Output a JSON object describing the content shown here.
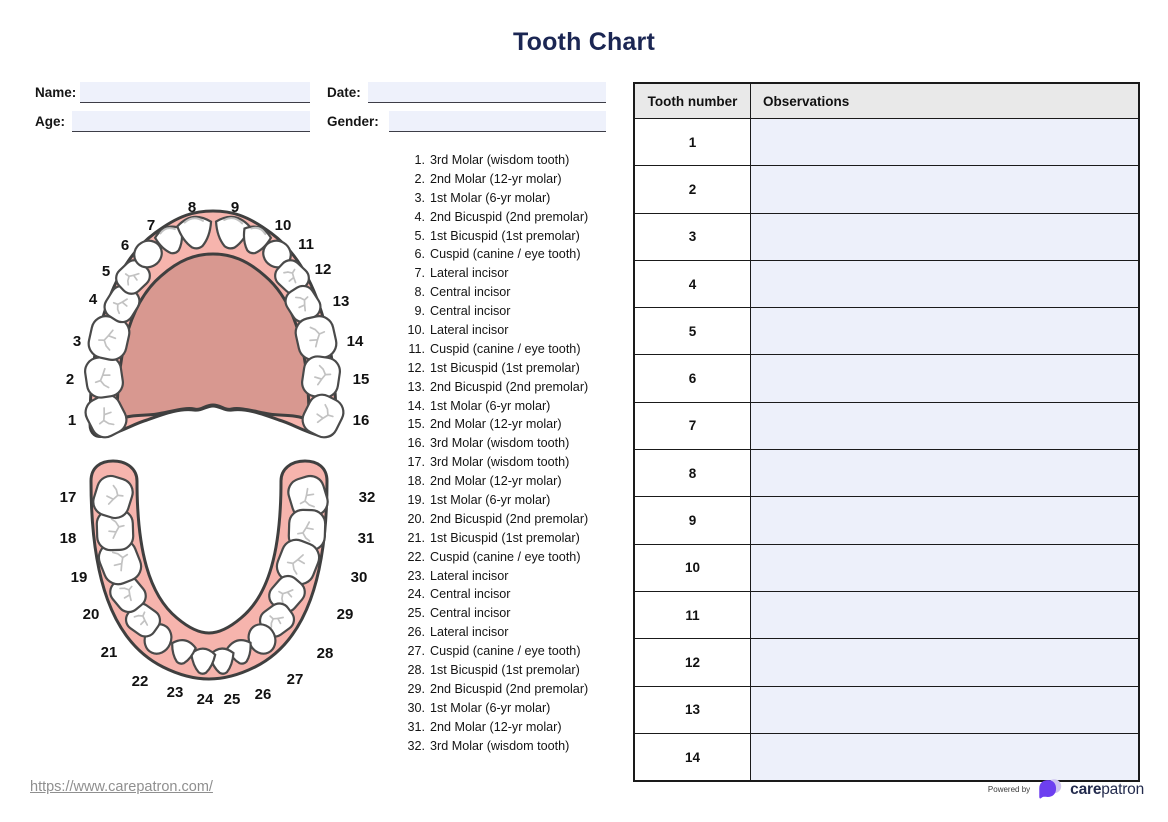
{
  "title": "Tooth Chart",
  "form": {
    "name_label": "Name:",
    "name_value": "",
    "date_label": "Date:",
    "date_value": "",
    "age_label": "Age:",
    "age_value": "",
    "gender_label": "Gender:",
    "gender_value": ""
  },
  "diagram": {
    "upper_teeth_numbers": [
      "1",
      "2",
      "3",
      "4",
      "5",
      "6",
      "7",
      "8",
      "9",
      "10",
      "11",
      "12",
      "13",
      "14",
      "15",
      "16"
    ],
    "lower_teeth_numbers": [
      "17",
      "18",
      "19",
      "20",
      "21",
      "22",
      "23",
      "24",
      "25",
      "26",
      "27",
      "28",
      "29",
      "30",
      "31",
      "32"
    ]
  },
  "tooth_list": [
    {
      "num": "1.",
      "name": "3rd Molar (wisdom tooth)"
    },
    {
      "num": "2.",
      "name": "2nd Molar (12-yr molar)"
    },
    {
      "num": "3.",
      "name": "1st Molar (6-yr molar)"
    },
    {
      "num": "4.",
      "name": "2nd Bicuspid (2nd premolar)"
    },
    {
      "num": "5.",
      "name": "1st Bicuspid (1st premolar)"
    },
    {
      "num": "6.",
      "name": "Cuspid (canine / eye tooth)"
    },
    {
      "num": "7.",
      "name": "Lateral incisor"
    },
    {
      "num": "8.",
      "name": "Central incisor"
    },
    {
      "num": "9.",
      "name": "Central incisor"
    },
    {
      "num": "10.",
      "name": "Lateral incisor"
    },
    {
      "num": "11.",
      "name": "Cuspid (canine / eye tooth)"
    },
    {
      "num": "12.",
      "name": "1st Bicuspid (1st premolar)"
    },
    {
      "num": "13.",
      "name": "2nd Bicuspid (2nd premolar)"
    },
    {
      "num": "14.",
      "name": "1st Molar (6-yr molar)"
    },
    {
      "num": "15.",
      "name": "2nd Molar (12-yr molar)"
    },
    {
      "num": "16.",
      "name": "3rd Molar (wisdom tooth)"
    },
    {
      "num": "17.",
      "name": "3rd Molar (wisdom tooth)"
    },
    {
      "num": "18.",
      "name": "2nd Molar (12-yr molar)"
    },
    {
      "num": "19.",
      "name": "1st Molar (6-yr molar)"
    },
    {
      "num": "20.",
      "name": "2nd Bicuspid (2nd premolar)"
    },
    {
      "num": "21.",
      "name": "1st Bicuspid (1st premolar)"
    },
    {
      "num": "22.",
      "name": "Cuspid (canine / eye tooth)"
    },
    {
      "num": "23.",
      "name": "Lateral incisor"
    },
    {
      "num": "24.",
      "name": "Central incisor"
    },
    {
      "num": "25.",
      "name": "Central incisor"
    },
    {
      "num": "26.",
      "name": "Lateral incisor"
    },
    {
      "num": "27.",
      "name": "Cuspid (canine / eye tooth)"
    },
    {
      "num": "28.",
      "name": "1st Bicuspid (1st premolar)"
    },
    {
      "num": "29.",
      "name": "2nd Bicuspid (2nd premolar)"
    },
    {
      "num": "30.",
      "name": "1st Molar (6-yr molar)"
    },
    {
      "num": "31.",
      "name": "2nd Molar (12-yr molar)"
    },
    {
      "num": "32.",
      "name": "3rd Molar (wisdom tooth)"
    }
  ],
  "table": {
    "headers": [
      "Tooth number",
      "Observations"
    ],
    "rows": [
      {
        "tooth_number": "1",
        "observation": ""
      },
      {
        "tooth_number": "2",
        "observation": ""
      },
      {
        "tooth_number": "3",
        "observation": ""
      },
      {
        "tooth_number": "4",
        "observation": ""
      },
      {
        "tooth_number": "5",
        "observation": ""
      },
      {
        "tooth_number": "6",
        "observation": ""
      },
      {
        "tooth_number": "7",
        "observation": ""
      },
      {
        "tooth_number": "8",
        "observation": ""
      },
      {
        "tooth_number": "9",
        "observation": ""
      },
      {
        "tooth_number": "10",
        "observation": ""
      },
      {
        "tooth_number": "11",
        "observation": ""
      },
      {
        "tooth_number": "12",
        "observation": ""
      },
      {
        "tooth_number": "13",
        "observation": ""
      },
      {
        "tooth_number": "14",
        "observation": ""
      }
    ]
  },
  "footer": {
    "url": "https://www.carepatron.com/",
    "powered_by": "Powered by",
    "brand_care": "care",
    "brand_patron": "patron"
  },
  "colors": {
    "title_navy": "#1b2653",
    "arch_pink": "#f6b4ad",
    "palate_pink": "#d89890",
    "outline": "#3f3f3f",
    "tooth_fill": "#ffffff",
    "tooth_stroke": "#4a4a4a",
    "fissure_gray": "#c2c2c2",
    "field_fill": "#eef1fb",
    "observation_fill": "#edf0fa",
    "header_gray": "#e9e9e9",
    "table_border": "#1a1a1a",
    "brand_purple": "#6d3ff0",
    "brand_lavender": "#cfc4f0",
    "brand_navy": "#232b4d",
    "url_gray": "#8f8f8f"
  }
}
